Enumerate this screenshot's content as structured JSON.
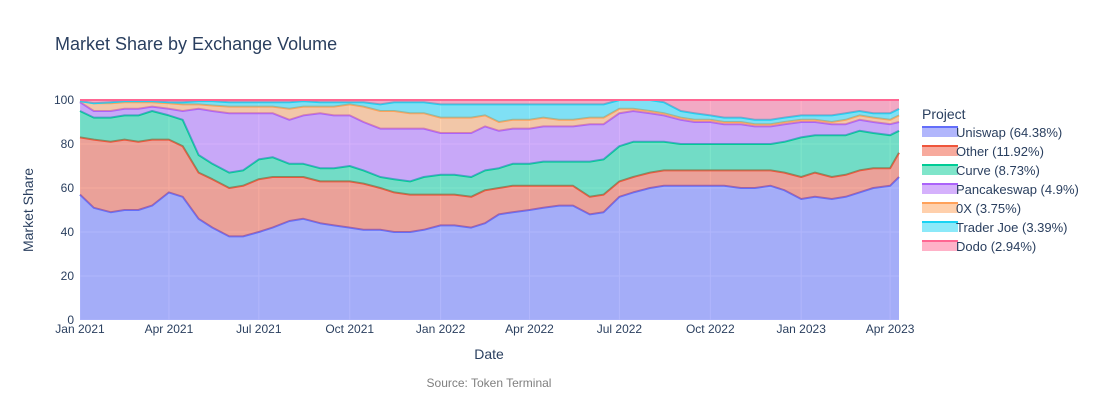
{
  "chart_data": {
    "type": "area",
    "title": "Market Share by Exchange Volume",
    "xlabel": "Date",
    "ylabel": "Market Share",
    "source_note": "Source: Token Terminal",
    "legend_title": "Project",
    "legend_position": "right",
    "stacked": true,
    "grid": true,
    "ylim": [
      0,
      100
    ],
    "yticks": [
      0,
      20,
      40,
      60,
      80,
      100
    ],
    "xlim": [
      "2021-01-01",
      "2023-04-10"
    ],
    "xticks": [
      {
        "date": "2021-01-01",
        "label": "Jan 2021"
      },
      {
        "date": "2021-04-01",
        "label": "Apr 2021"
      },
      {
        "date": "2021-07-01",
        "label": "Jul 2021"
      },
      {
        "date": "2021-10-01",
        "label": "Oct 2021"
      },
      {
        "date": "2022-01-01",
        "label": "Jan 2022"
      },
      {
        "date": "2022-04-01",
        "label": "Apr 2022"
      },
      {
        "date": "2022-07-01",
        "label": "Jul 2022"
      },
      {
        "date": "2022-10-01",
        "label": "Oct 2022"
      },
      {
        "date": "2023-01-01",
        "label": "Jan 2023"
      },
      {
        "date": "2023-04-01",
        "label": "Apr 2023"
      }
    ],
    "x": [
      "2021-01-01",
      "2021-01-15",
      "2021-02-01",
      "2021-02-15",
      "2021-03-01",
      "2021-03-15",
      "2021-04-01",
      "2021-04-15",
      "2021-05-01",
      "2021-05-15",
      "2021-06-01",
      "2021-06-15",
      "2021-07-01",
      "2021-07-15",
      "2021-08-01",
      "2021-08-15",
      "2021-09-01",
      "2021-09-15",
      "2021-10-01",
      "2021-10-15",
      "2021-11-01",
      "2021-11-15",
      "2021-12-01",
      "2021-12-15",
      "2022-01-01",
      "2022-01-15",
      "2022-02-01",
      "2022-02-15",
      "2022-03-01",
      "2022-03-15",
      "2022-04-01",
      "2022-04-15",
      "2022-05-01",
      "2022-05-15",
      "2022-06-01",
      "2022-06-15",
      "2022-07-01",
      "2022-07-15",
      "2022-08-01",
      "2022-08-15",
      "2022-09-01",
      "2022-09-15",
      "2022-10-01",
      "2022-10-15",
      "2022-11-01",
      "2022-11-15",
      "2022-12-01",
      "2022-12-15",
      "2023-01-01",
      "2023-01-15",
      "2023-02-01",
      "2023-02-15",
      "2023-03-01",
      "2023-03-15",
      "2023-04-01",
      "2023-04-10"
    ],
    "series": [
      {
        "name": "Uniswap (64.38%)",
        "color": "#636efa",
        "values": [
          57,
          51,
          49,
          50,
          50,
          52,
          58,
          56,
          46,
          42,
          38,
          38,
          40,
          42,
          45,
          46,
          44,
          43,
          42,
          41,
          41,
          40,
          40,
          41,
          43,
          43,
          42,
          44,
          48,
          49,
          50,
          51,
          52,
          52,
          48,
          49,
          56,
          58,
          60,
          61,
          61,
          61,
          61,
          61,
          60,
          60,
          61,
          59,
          55,
          56,
          55,
          56,
          58,
          60,
          61,
          65
        ]
      },
      {
        "name": "Other (11.92%)",
        "color": "#ef553b",
        "values": [
          26,
          31,
          32,
          32,
          31,
          30,
          24,
          23,
          21,
          22,
          22,
          23,
          24,
          23,
          20,
          19,
          19,
          20,
          21,
          21,
          19,
          18,
          17,
          16,
          14,
          14,
          14,
          15,
          12,
          12,
          11,
          10,
          9,
          9,
          8,
          8,
          7,
          7,
          7,
          7,
          7,
          7,
          7,
          7,
          8,
          8,
          7,
          8,
          10,
          11,
          10,
          10,
          10,
          9,
          8,
          11
        ]
      },
      {
        "name": "Curve (8.73%)",
        "color": "#00cc96",
        "values": [
          12,
          10,
          11,
          11,
          12,
          13,
          11,
          12,
          8,
          7,
          7,
          7,
          9,
          9,
          6,
          6,
          6,
          6,
          7,
          6,
          5,
          6,
          6,
          8,
          9,
          9,
          9,
          9,
          9,
          10,
          10,
          11,
          11,
          11,
          16,
          16,
          16,
          16,
          14,
          13,
          12,
          12,
          12,
          12,
          12,
          12,
          12,
          14,
          18,
          17,
          19,
          18,
          18,
          16,
          15,
          10
        ]
      },
      {
        "name": "Pancakeswap (4.9%)",
        "color": "#ab63fa",
        "values": [
          4,
          3,
          3,
          3,
          3,
          2,
          3,
          4,
          21,
          24,
          27,
          26,
          21,
          20,
          20,
          22,
          25,
          24,
          23,
          22,
          22,
          23,
          24,
          22,
          19,
          19,
          20,
          20,
          17,
          16,
          16,
          16,
          16,
          16,
          17,
          16,
          15,
          14,
          13,
          12,
          11,
          10,
          10,
          9,
          9,
          8,
          8,
          8,
          7,
          6,
          5,
          5,
          5,
          5,
          5,
          4
        ]
      },
      {
        "name": "0X (3.75%)",
        "color": "#ffa15a",
        "values": [
          0.5,
          3.5,
          3.5,
          3,
          3,
          2,
          2.5,
          3,
          2,
          2.5,
          3,
          3,
          3,
          3,
          5,
          4,
          3,
          4,
          5,
          7,
          8,
          8,
          7,
          7,
          7,
          7,
          7,
          5,
          4,
          4,
          4,
          4,
          3,
          3,
          3,
          3,
          2,
          1,
          1,
          1,
          1,
          1,
          1,
          1,
          1,
          1,
          1,
          1,
          1,
          1,
          1,
          2,
          2,
          2,
          2,
          3
        ]
      },
      {
        "name": "Trader Joe (3.39%)",
        "color": "#19d3f3",
        "values": [
          0,
          0,
          0.5,
          0.5,
          0.5,
          0.5,
          0.5,
          1,
          1.5,
          2,
          2,
          2,
          2,
          2,
          3,
          2.5,
          2,
          2,
          1,
          2,
          3,
          4,
          5,
          5,
          6,
          6,
          6,
          5,
          8,
          7,
          7,
          6,
          7,
          7,
          6,
          6,
          6,
          5,
          5,
          5,
          3,
          3,
          2,
          2,
          2,
          2,
          2,
          2,
          2,
          2,
          3,
          3,
          2,
          2,
          3,
          3
        ]
      },
      {
        "name": "Dodo (2.94%)",
        "color": "#ff6692",
        "values": [
          0.5,
          1.5,
          1,
          0.5,
          0.5,
          0.5,
          1,
          1,
          0.5,
          0.5,
          1,
          1,
          1,
          1,
          1,
          0.5,
          1,
          1,
          1,
          1,
          2,
          1,
          1,
          1,
          2,
          2,
          2,
          2,
          2,
          2,
          2,
          2,
          2,
          2,
          2,
          2,
          2,
          9,
          10,
          11,
          5,
          6,
          7,
          8,
          8,
          9,
          9,
          8,
          7,
          7,
          7,
          6,
          5,
          6,
          6,
          4
        ]
      }
    ]
  }
}
